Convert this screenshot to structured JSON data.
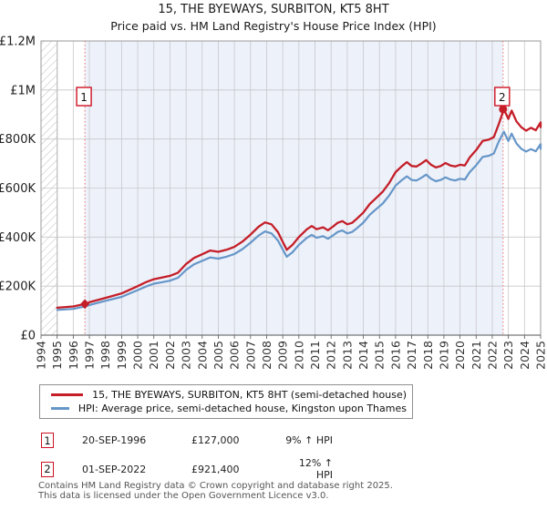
{
  "title": "15, THE BYEWAYS, SURBITON, KT5 8HT",
  "subtitle": "Price paid vs. HM Land Registry's House Price Index (HPI)",
  "legend": [
    {
      "label": "15, THE BYEWAYS, SURBITON, KT5 8HT (semi-detached house)",
      "color": "#c41e28"
    },
    {
      "label": "HPI: Average price, semi-detached house, Kingston upon Thames",
      "color": "#6696c8"
    }
  ],
  "sales": [
    {
      "marker": "1",
      "date": "20-SEP-1996",
      "price": "£127,000",
      "hpi_delta": "9% ↑ HPI",
      "year": 1996.72,
      "value": 127000
    },
    {
      "marker": "2",
      "date": "01-SEP-2022",
      "price": "£921,400",
      "hpi_delta": "12% ↑ HPI",
      "year": 2022.67,
      "value": 921400
    }
  ],
  "footer": {
    "line1": "Contains HM Land Registry data © Crown copyright and database right 2025.",
    "line2": "This data is licensed under the Open Government Licence v3.0."
  },
  "colors": {
    "property_line": "#c41e28",
    "hpi_line": "#6696c8",
    "sale_marker_line": "#ee7d7d",
    "ownership_shade": "#edf1fa",
    "grid": "#c8c8cc",
    "axis": "#555555",
    "plot_border": "#9a9a9a",
    "hatch": "#bdbdbd",
    "annotation_border": "#cc1122",
    "tick_text": "#333333"
  },
  "chart_data": {
    "type": "line",
    "title": "15, THE BYEWAYS, SURBITON, KT5 8HT",
    "subtitle": "Price paid vs. HM Land Registry's House Price Index (HPI)",
    "xlabel": "",
    "ylabel": "",
    "grid": true,
    "legend_position": "bottom",
    "x_range": [
      1994,
      2025
    ],
    "y_range": [
      0,
      1200000
    ],
    "y_ticks": {
      "values": [
        0,
        200000,
        400000,
        600000,
        800000,
        1000000,
        1200000
      ],
      "labels": [
        "£0",
        "£200K",
        "£400K",
        "£600K",
        "£800K",
        "£1M",
        "£1.2M"
      ]
    },
    "x_ticks": [
      1994,
      1995,
      1996,
      1997,
      1998,
      1999,
      2000,
      2001,
      2002,
      2003,
      2004,
      2005,
      2006,
      2007,
      2008,
      2009,
      2010,
      2011,
      2012,
      2013,
      2014,
      2015,
      2016,
      2017,
      2018,
      2019,
      2020,
      2021,
      2022,
      2023,
      2024,
      2025
    ],
    "no_data_hatch": {
      "from": 1994,
      "to": 1995
    },
    "shaded_region": {
      "from": 1996.72,
      "to": 2022.67
    },
    "x": [
      1995,
      1996,
      1996.72,
      1997,
      1998,
      1999,
      2000,
      2000.5,
      2001,
      2001.5,
      2002,
      2002.5,
      2003,
      2003.5,
      2004,
      2004.5,
      2005,
      2005.5,
      2006,
      2006.5,
      2007,
      2007.5,
      2007.9,
      2008.3,
      2008.7,
      2009,
      2009.25,
      2009.6,
      2010,
      2010.5,
      2010.8,
      2011.1,
      2011.5,
      2011.8,
      2012.1,
      2012.4,
      2012.7,
      2013,
      2013.3,
      2013.6,
      2014,
      2014.4,
      2014.8,
      2015.2,
      2015.6,
      2016,
      2016.4,
      2016.7,
      2017,
      2017.3,
      2017.6,
      2017.9,
      2018.2,
      2018.5,
      2018.8,
      2019.1,
      2019.4,
      2019.7,
      2020,
      2020.3,
      2020.6,
      2021,
      2021.4,
      2021.8,
      2022.1,
      2022.4,
      2022.72,
      2023,
      2023.2,
      2023.5,
      2023.8,
      2024.1,
      2024.4,
      2024.7,
      2025,
      2025.2
    ],
    "series": [
      {
        "name": "15, THE BYEWAYS, SURBITON, KT5 8HT (semi-detached house)",
        "color": "#c41e28",
        "width": 2.3,
        "values": [
          112000,
          117000,
          127000,
          134000,
          152000,
          170000,
          200000,
          216000,
          228000,
          235000,
          242000,
          255000,
          290000,
          315000,
          330000,
          345000,
          340000,
          348000,
          360000,
          382000,
          410000,
          442000,
          460000,
          452000,
          420000,
          380000,
          348000,
          368000,
          400000,
          432000,
          445000,
          432000,
          440000,
          428000,
          442000,
          458000,
          465000,
          452000,
          458000,
          475000,
          500000,
          535000,
          560000,
          585000,
          620000,
          665000,
          690000,
          706000,
          690000,
          688000,
          700000,
          714000,
          695000,
          684000,
          690000,
          702000,
          692000,
          688000,
          695000,
          692000,
          725000,
          755000,
          792000,
          798000,
          808000,
          860000,
          921400,
          882000,
          916000,
          872000,
          848000,
          834000,
          846000,
          836000,
          868000,
          848000
        ]
      },
      {
        "name": "HPI: Average price, semi-detached house, Kingston upon Thames",
        "color": "#6696c8",
        "width": 2.2,
        "values": [
          103000,
          107000,
          117000,
          123000,
          140000,
          156000,
          184000,
          198000,
          210000,
          216000,
          222000,
          234000,
          266000,
          289000,
          303000,
          317000,
          312000,
          320000,
          331000,
          351000,
          377000,
          406000,
          423000,
          415000,
          386000,
          349000,
          320000,
          338000,
          368000,
          397000,
          409000,
          397000,
          404000,
          393000,
          406000,
          421000,
          427000,
          415000,
          421000,
          436000,
          459000,
          491000,
          514000,
          537000,
          569000,
          610000,
          633000,
          648000,
          633000,
          631000,
          642000,
          655000,
          638000,
          628000,
          633000,
          644000,
          635000,
          631000,
          638000,
          635000,
          665000,
          693000,
          727000,
          732000,
          741000,
          789000,
          830000,
          792000,
          822000,
          782000,
          760000,
          749000,
          759000,
          750000,
          779000,
          760000
        ]
      }
    ]
  }
}
